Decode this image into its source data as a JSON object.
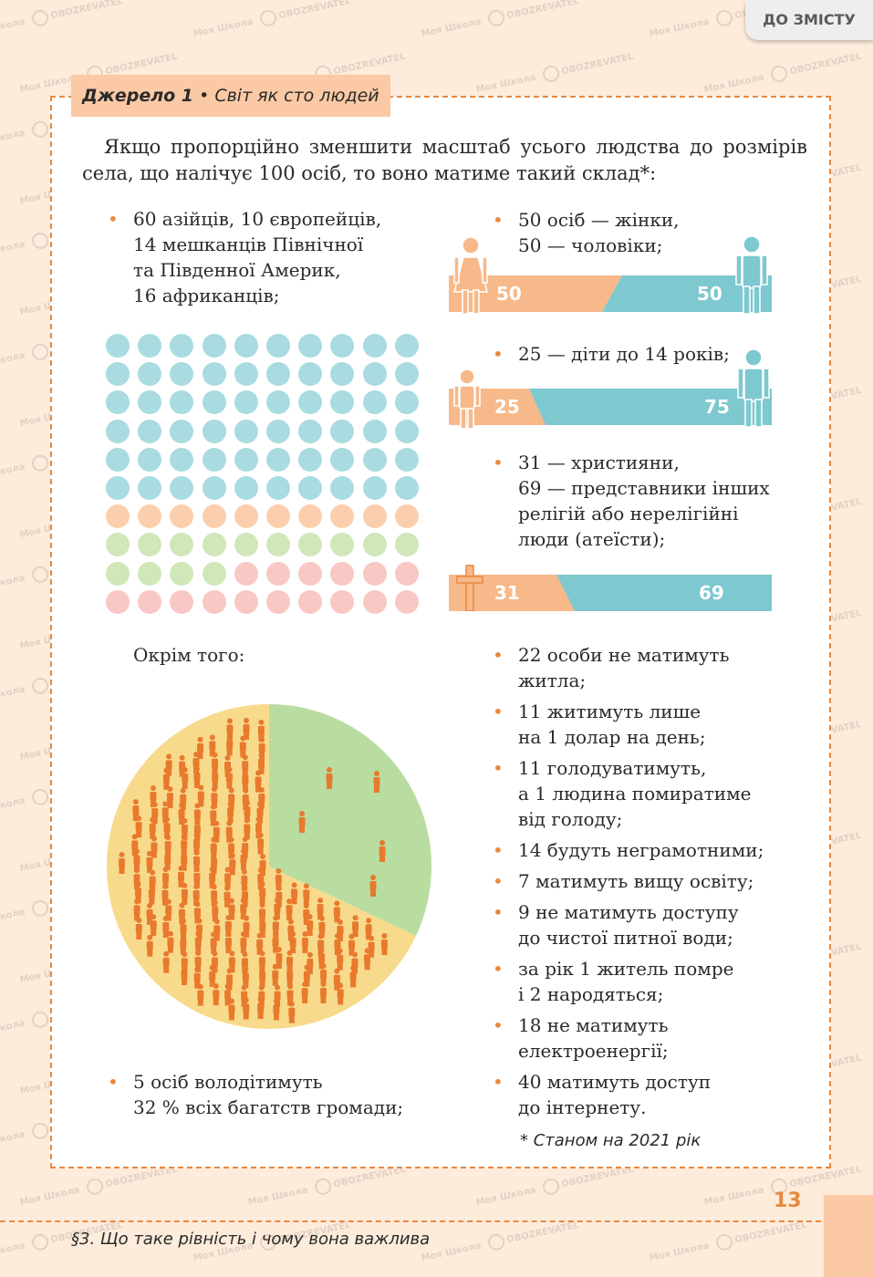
{
  "toc_button": "ДО ЗМІСТУ",
  "watermark": {
    "brand1": "Моя Школа",
    "brand2": "OBOZREVATEL"
  },
  "source": {
    "label": "Джерело 1",
    "sep": "•",
    "title": "Світ як сто людей"
  },
  "intro": "Якщо пропорційно зменшити масштаб усього людства до розмірів села, що налічує 100 осіб, то воно матиме такий склад*:",
  "left_bullet_1": [
    "60 азійців, 10 європейців,",
    "14 мешканців Північної",
    "та Південної Америк,",
    "16 африканців;"
  ],
  "dot_grid": {
    "rows": 10,
    "cols": 10,
    "asia": 60,
    "europe": 10,
    "americas": 14,
    "africa": 16,
    "colors": {
      "asia": "#a9dbe0",
      "europe": "#fbcfae",
      "americas": "#cfe7b9",
      "africa": "#f8c8c4"
    }
  },
  "right_bullet_gender": [
    "50 осіб — жінки,",
    "50 — чоловіки;"
  ],
  "bar_gender": {
    "left": "50",
    "right": "50"
  },
  "right_bullet_children": [
    "25 — діти до 14 років;"
  ],
  "bar_children": {
    "left": "25",
    "right": "75"
  },
  "right_bullet_religion": [
    "31 — християни,",
    "69 — представники інших",
    "релігій або нерелігійні",
    "люди (атеїсти);"
  ],
  "bar_religion": {
    "left": "31",
    "right": "69"
  },
  "bar_colors": {
    "orange": "#f7b98a",
    "teal": "#7ec8cf"
  },
  "besides": "Окрім того:",
  "pie": {
    "wealth_share_pct": 32,
    "people": 5,
    "colors": {
      "rich": "#b9dca0",
      "rest": "#f8da8c",
      "person": "#e87a2e"
    }
  },
  "left_bullet_2": [
    "5 осіб володітимуть",
    "32 % всіх багатств громади;"
  ],
  "right_list": [
    [
      "22 особи не матимуть",
      "житла;"
    ],
    [
      "11 житимуть лише",
      "на 1 долар на день;"
    ],
    [
      "11 голодуватимуть,",
      "а 1 людина помиратиме",
      "від голоду;"
    ],
    [
      "14 будуть неграмотними;"
    ],
    [
      "7 матимуть вищу освіту;"
    ],
    [
      "9 не матимуть доступу",
      "до чистої питної води;"
    ],
    [
      "за рік 1 житель помре",
      "і 2 народяться;"
    ],
    [
      "18 не матимуть",
      "електроенергії;"
    ],
    [
      "40 матимуть доступ",
      "до інтернету."
    ]
  ],
  "footnote": "* Станом на 2021 рік",
  "page_number": "13",
  "chapter": "§3. Що таке рівність і чому вона важлива"
}
